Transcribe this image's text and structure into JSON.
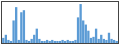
{
  "chart_data": {
    "type": "bar",
    "categories": [
      null,
      null,
      null,
      null,
      null,
      null,
      null,
      null,
      null,
      null,
      null,
      null,
      null,
      null,
      null,
      null,
      null,
      null,
      null,
      null,
      null,
      null,
      null,
      null,
      null,
      null,
      null,
      null,
      null,
      null,
      null,
      null,
      null,
      null,
      null,
      null,
      null,
      null,
      null,
      null,
      null,
      null,
      null,
      null,
      null
    ],
    "values": [
      5,
      8,
      3,
      2,
      22,
      35,
      3,
      30,
      32,
      3,
      2,
      4,
      8,
      14,
      4,
      2,
      2,
      3,
      2,
      3,
      2,
      2,
      2,
      3,
      2,
      3,
      2,
      2,
      3,
      25,
      38,
      22,
      18,
      12,
      5,
      6,
      14,
      4,
      8,
      4,
      3,
      10,
      4,
      3,
      2
    ],
    "color": "#5b9bd5",
    "ylim": [
      0,
      40
    ],
    "tick_labels": false
  }
}
